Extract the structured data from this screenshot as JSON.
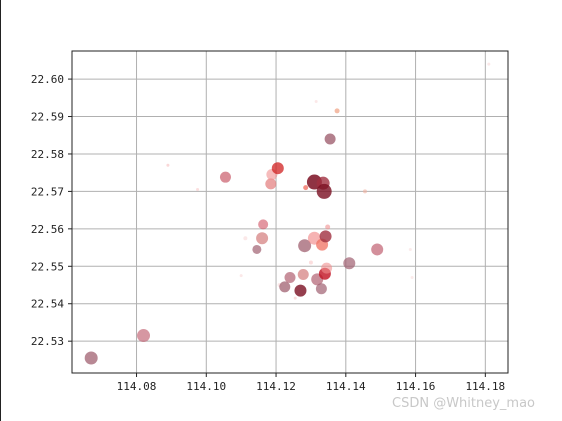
{
  "watermark": "CSDN @Whitney_mao",
  "chart_data": {
    "type": "scatter",
    "title": "",
    "xlabel": "",
    "ylabel": "",
    "xlim": [
      114.0615,
      114.1865
    ],
    "ylim": [
      22.5215,
      22.6075
    ],
    "xticks": [
      114.08,
      114.1,
      114.12,
      114.14,
      114.16,
      114.18
    ],
    "yticks": [
      22.53,
      22.54,
      22.55,
      22.56,
      22.57,
      22.58,
      22.59,
      22.6
    ],
    "xtick_labels": [
      "114.08",
      "114.10",
      "114.12",
      "114.14",
      "114.16",
      "114.18"
    ],
    "ytick_labels": [
      "22.53",
      "22.54",
      "22.55",
      "22.56",
      "22.57",
      "22.58",
      "22.59",
      "22.60"
    ],
    "grid": true,
    "colors": {
      "axis": "#222222",
      "grid": "#b0b0b0",
      "dark_red": "#7b0f22",
      "red": "#e03030",
      "salmon": "#f08070",
      "mauve": "#a06070",
      "pale_pink": "#f8c8c8"
    },
    "points": [
      {
        "x": 114.067,
        "y": 22.5255,
        "size": 13,
        "color": "#a06070",
        "alpha": 0.75
      },
      {
        "x": 114.082,
        "y": 22.5315,
        "size": 13,
        "color": "#c06070",
        "alpha": 0.65
      },
      {
        "x": 114.089,
        "y": 22.577,
        "size": 3,
        "color": "#f8c8c8",
        "alpha": 0.7
      },
      {
        "x": 114.0975,
        "y": 22.5705,
        "size": 3,
        "color": "#f8c8c8",
        "alpha": 0.6
      },
      {
        "x": 114.1055,
        "y": 22.5738,
        "size": 11,
        "color": "#c04050",
        "alpha": 0.6
      },
      {
        "x": 114.11,
        "y": 22.5475,
        "size": 3,
        "color": "#f8d8d8",
        "alpha": 0.6
      },
      {
        "x": 114.1112,
        "y": 22.5575,
        "size": 4,
        "color": "#f8d8d8",
        "alpha": 0.6
      },
      {
        "x": 114.1145,
        "y": 22.5545,
        "size": 9,
        "color": "#a06070",
        "alpha": 0.7
      },
      {
        "x": 114.116,
        "y": 22.5575,
        "size": 12,
        "color": "#d07070",
        "alpha": 0.65
      },
      {
        "x": 114.1163,
        "y": 22.5612,
        "size": 10,
        "color": "#d05060",
        "alpha": 0.6
      },
      {
        "x": 114.1185,
        "y": 22.572,
        "size": 11,
        "color": "#e07070",
        "alpha": 0.65
      },
      {
        "x": 114.1188,
        "y": 22.5745,
        "size": 11,
        "color": "#f09090",
        "alpha": 0.6
      },
      {
        "x": 114.1205,
        "y": 22.5762,
        "size": 12,
        "color": "#d02020",
        "alpha": 0.75
      },
      {
        "x": 114.121,
        "y": 22.545,
        "size": 4,
        "color": "#f8d8d8",
        "alpha": 0.6
      },
      {
        "x": 114.1225,
        "y": 22.5445,
        "size": 11,
        "color": "#a06070",
        "alpha": 0.75
      },
      {
        "x": 114.124,
        "y": 22.547,
        "size": 11,
        "color": "#b06070",
        "alpha": 0.7
      },
      {
        "x": 114.1255,
        "y": 22.5415,
        "size": 3,
        "color": "#f8c8c8",
        "alpha": 0.6
      },
      {
        "x": 114.127,
        "y": 22.5435,
        "size": 12,
        "color": "#7b0f22",
        "alpha": 0.8
      },
      {
        "x": 114.1278,
        "y": 22.5478,
        "size": 11,
        "color": "#d07070",
        "alpha": 0.65
      },
      {
        "x": 114.1282,
        "y": 22.5555,
        "size": 13,
        "color": "#a06070",
        "alpha": 0.75
      },
      {
        "x": 114.1285,
        "y": 22.571,
        "size": 5,
        "color": "#f06050",
        "alpha": 0.7
      },
      {
        "x": 114.13,
        "y": 22.551,
        "size": 4,
        "color": "#f8c8c8",
        "alpha": 0.6
      },
      {
        "x": 114.131,
        "y": 22.5575,
        "size": 13,
        "color": "#f08080",
        "alpha": 0.6
      },
      {
        "x": 114.131,
        "y": 22.5725,
        "size": 15,
        "color": "#7b0f22",
        "alpha": 0.85
      },
      {
        "x": 114.1315,
        "y": 22.594,
        "size": 3,
        "color": "#f8d8d8",
        "alpha": 0.6
      },
      {
        "x": 114.1318,
        "y": 22.5465,
        "size": 12,
        "color": "#b06070",
        "alpha": 0.7
      },
      {
        "x": 114.133,
        "y": 22.544,
        "size": 11,
        "color": "#a06070",
        "alpha": 0.7
      },
      {
        "x": 114.1332,
        "y": 22.5558,
        "size": 12,
        "color": "#f07060",
        "alpha": 0.75
      },
      {
        "x": 114.1335,
        "y": 22.5722,
        "size": 13,
        "color": "#a03040",
        "alpha": 0.8
      },
      {
        "x": 114.1338,
        "y": 22.57,
        "size": 15,
        "color": "#7b0f22",
        "alpha": 0.8
      },
      {
        "x": 114.134,
        "y": 22.548,
        "size": 12,
        "color": "#c01020",
        "alpha": 0.8
      },
      {
        "x": 114.1342,
        "y": 22.558,
        "size": 12,
        "color": "#a03040",
        "alpha": 0.8
      },
      {
        "x": 114.1345,
        "y": 22.5495,
        "size": 11,
        "color": "#f09090",
        "alpha": 0.6
      },
      {
        "x": 114.1348,
        "y": 22.5605,
        "size": 5,
        "color": "#f09090",
        "alpha": 0.6
      },
      {
        "x": 114.1355,
        "y": 22.584,
        "size": 11,
        "color": "#a06070",
        "alpha": 0.8
      },
      {
        "x": 114.1375,
        "y": 22.5915,
        "size": 5,
        "color": "#f0a080",
        "alpha": 0.7
      },
      {
        "x": 114.141,
        "y": 22.5508,
        "size": 12,
        "color": "#a06070",
        "alpha": 0.7
      },
      {
        "x": 114.1455,
        "y": 22.57,
        "size": 4,
        "color": "#f0b0a0",
        "alpha": 0.6
      },
      {
        "x": 114.149,
        "y": 22.5545,
        "size": 12,
        "color": "#c06070",
        "alpha": 0.7
      },
      {
        "x": 114.1585,
        "y": 22.5545,
        "size": 3,
        "color": "#f8d8d8",
        "alpha": 0.5
      },
      {
        "x": 114.159,
        "y": 22.547,
        "size": 3,
        "color": "#f8d8d8",
        "alpha": 0.5
      },
      {
        "x": 114.181,
        "y": 22.604,
        "size": 3,
        "color": "#f8d8d8",
        "alpha": 0.6
      }
    ]
  }
}
